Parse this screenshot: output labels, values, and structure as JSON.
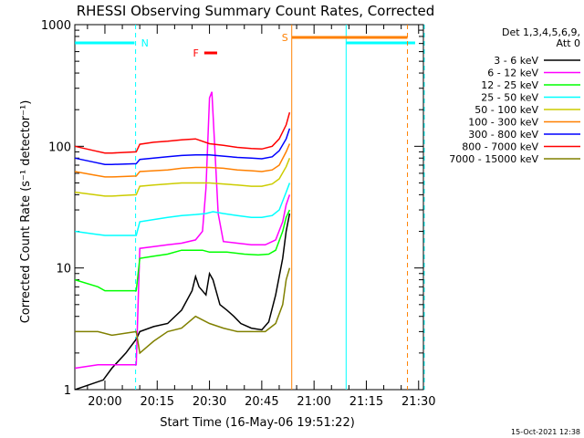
{
  "chart_data": {
    "type": "line",
    "title": "RHESSI Observing Summary Count Rates, Corrected",
    "xlabel": "Start Time (16-May-06 19:51:22)",
    "ylabel": "Corrected Count Rate (s⁻¹ detector⁻¹)",
    "footer": "15-Oct-2021 12:38",
    "y_scale": "log",
    "ylim": [
      1,
      1000
    ],
    "xlim_minutes": [
      -8.63,
      91.37
    ],
    "x_ticks": [
      {
        "label": "20:00",
        "minute": 0
      },
      {
        "label": "20:15",
        "minute": 15
      },
      {
        "label": "20:30",
        "minute": 30
      },
      {
        "label": "20:45",
        "minute": 45
      },
      {
        "label": "21:00",
        "minute": 60
      },
      {
        "label": "21:15",
        "minute": 75
      },
      {
        "label": "21:30",
        "minute": 90
      }
    ],
    "y_ticks": [
      {
        "label": "1",
        "value": 1
      },
      {
        "label": "10",
        "value": 10
      },
      {
        "label": "100",
        "value": 100
      },
      {
        "label": "1000",
        "value": 1000
      }
    ],
    "legend": {
      "header_line1": "Det 1,3,4,5,6,9,",
      "header_line2": "Att 0",
      "placement": "right"
    },
    "series": [
      {
        "name": "3 - 6 keV",
        "color": "#000000",
        "points": [
          [
            -8.6,
            1
          ],
          [
            -0.5,
            1.2
          ],
          [
            2,
            1.5
          ],
          [
            6,
            2
          ],
          [
            9,
            2.6
          ],
          [
            10,
            3
          ],
          [
            14,
            3.3
          ],
          [
            18,
            3.5
          ],
          [
            22,
            4.5
          ],
          [
            25,
            6.5
          ],
          [
            26,
            8.5
          ],
          [
            27,
            7
          ],
          [
            29,
            6
          ],
          [
            30,
            9
          ],
          [
            31,
            8
          ],
          [
            33,
            5
          ],
          [
            35,
            4.5
          ],
          [
            37,
            4
          ],
          [
            39,
            3.5
          ],
          [
            42,
            3.2
          ],
          [
            45,
            3.1
          ],
          [
            47,
            3.6
          ],
          [
            49,
            6
          ],
          [
            51,
            12
          ],
          [
            52,
            20
          ],
          [
            53,
            28
          ]
        ]
      },
      {
        "name": "6 - 12 keV",
        "color": "#ff00ff",
        "points": [
          [
            -8.6,
            1.5
          ],
          [
            -2,
            1.6
          ],
          [
            2,
            1.6
          ],
          [
            9,
            1.6
          ],
          [
            10,
            14.5
          ],
          [
            14,
            15
          ],
          [
            18,
            15.5
          ],
          [
            22,
            16
          ],
          [
            26,
            17
          ],
          [
            28,
            20
          ],
          [
            29,
            45
          ],
          [
            30,
            250
          ],
          [
            30.7,
            280
          ],
          [
            31.5,
            100
          ],
          [
            32.5,
            28
          ],
          [
            34,
            16.5
          ],
          [
            38,
            16
          ],
          [
            42,
            15.5
          ],
          [
            46,
            15.5
          ],
          [
            49,
            17
          ],
          [
            51,
            24
          ],
          [
            52,
            33
          ],
          [
            53,
            40
          ]
        ]
      },
      {
        "name": "12 - 25 keV",
        "color": "#00ff00",
        "points": [
          [
            -8.6,
            8
          ],
          [
            -2,
            7
          ],
          [
            0,
            6.5
          ],
          [
            2,
            6.5
          ],
          [
            9,
            6.5
          ],
          [
            10,
            12
          ],
          [
            14,
            12.5
          ],
          [
            18,
            13
          ],
          [
            22,
            14
          ],
          [
            26,
            14
          ],
          [
            28,
            14
          ],
          [
            30,
            13.5
          ],
          [
            32,
            13.5
          ],
          [
            35,
            13.5
          ],
          [
            40,
            13
          ],
          [
            44,
            12.8
          ],
          [
            47,
            13
          ],
          [
            49,
            14
          ],
          [
            51,
            20
          ],
          [
            52,
            26
          ],
          [
            53,
            30
          ]
        ]
      },
      {
        "name": "25 - 50 keV",
        "color": "#00ffff",
        "points": [
          [
            -8.6,
            20
          ],
          [
            -3,
            19
          ],
          [
            0,
            18.5
          ],
          [
            2,
            18.5
          ],
          [
            9,
            18.5
          ],
          [
            10,
            24
          ],
          [
            14,
            25
          ],
          [
            18,
            26
          ],
          [
            22,
            27
          ],
          [
            26,
            27.5
          ],
          [
            29,
            28
          ],
          [
            31,
            29
          ],
          [
            34,
            28
          ],
          [
            38,
            27
          ],
          [
            42,
            26
          ],
          [
            45,
            26
          ],
          [
            48,
            27
          ],
          [
            50,
            30
          ],
          [
            52,
            42
          ],
          [
            53,
            50
          ]
        ]
      },
      {
        "name": "50 - 100 keV",
        "color": "#cccc00",
        "points": [
          [
            -8.6,
            42
          ],
          [
            -3,
            40
          ],
          [
            0,
            39
          ],
          [
            2,
            39
          ],
          [
            9,
            40
          ],
          [
            10,
            47
          ],
          [
            14,
            48
          ],
          [
            18,
            49
          ],
          [
            22,
            50
          ],
          [
            26,
            50
          ],
          [
            30,
            50
          ],
          [
            34,
            49
          ],
          [
            38,
            48
          ],
          [
            42,
            47
          ],
          [
            45,
            47
          ],
          [
            48,
            49
          ],
          [
            50,
            54
          ],
          [
            52,
            68
          ],
          [
            53,
            80
          ]
        ]
      },
      {
        "name": "100 - 300 keV",
        "color": "#ff8000",
        "points": [
          [
            -8.6,
            62
          ],
          [
            -3,
            58
          ],
          [
            0,
            56
          ],
          [
            2,
            56
          ],
          [
            9,
            57
          ],
          [
            10,
            62
          ],
          [
            14,
            63
          ],
          [
            18,
            64
          ],
          [
            22,
            66
          ],
          [
            26,
            67
          ],
          [
            30,
            67
          ],
          [
            34,
            66
          ],
          [
            38,
            64
          ],
          [
            42,
            63
          ],
          [
            45,
            62
          ],
          [
            48,
            64
          ],
          [
            50,
            70
          ],
          [
            52,
            90
          ],
          [
            53,
            105
          ]
        ]
      },
      {
        "name": "300 - 800 keV",
        "color": "#0000ff",
        "points": [
          [
            -8.6,
            80
          ],
          [
            -3,
            74
          ],
          [
            0,
            71
          ],
          [
            2,
            71
          ],
          [
            9,
            72
          ],
          [
            10,
            78
          ],
          [
            14,
            80
          ],
          [
            18,
            82
          ],
          [
            22,
            84
          ],
          [
            26,
            85
          ],
          [
            30,
            85
          ],
          [
            34,
            83
          ],
          [
            38,
            81
          ],
          [
            42,
            80
          ],
          [
            45,
            79
          ],
          [
            48,
            82
          ],
          [
            50,
            92
          ],
          [
            52,
            115
          ],
          [
            53,
            140
          ]
        ]
      },
      {
        "name": "800 - 7000 keV",
        "color": "#ff0000",
        "points": [
          [
            -8.6,
            100
          ],
          [
            -3,
            92
          ],
          [
            0,
            88
          ],
          [
            2,
            88
          ],
          [
            9,
            90
          ],
          [
            10,
            104
          ],
          [
            14,
            108
          ],
          [
            18,
            110
          ],
          [
            22,
            113
          ],
          [
            26,
            115
          ],
          [
            30,
            105
          ],
          [
            34,
            102
          ],
          [
            38,
            98
          ],
          [
            42,
            96
          ],
          [
            45,
            95
          ],
          [
            48,
            100
          ],
          [
            50,
            115
          ],
          [
            52,
            150
          ],
          [
            53,
            190
          ]
        ]
      },
      {
        "name": "7000 - 15000 keV",
        "color": "#808000",
        "points": [
          [
            -8.6,
            3
          ],
          [
            -2,
            3
          ],
          [
            2,
            2.8
          ],
          [
            9,
            3
          ],
          [
            10,
            2
          ],
          [
            14,
            2.5
          ],
          [
            18,
            3
          ],
          [
            22,
            3.2
          ],
          [
            26,
            4
          ],
          [
            30,
            3.5
          ],
          [
            34,
            3.2
          ],
          [
            38,
            3
          ],
          [
            42,
            3
          ],
          [
            46,
            3
          ],
          [
            49,
            3.5
          ],
          [
            51,
            5
          ],
          [
            52,
            8
          ],
          [
            53,
            10
          ]
        ]
      }
    ],
    "markers": [
      {
        "label": "N",
        "color": "#00ffff",
        "type": "night",
        "bar_start_minute": -8.6,
        "bar_end_minute": 8.5,
        "line_minute": 8.8,
        "line_style": "dashed"
      },
      {
        "label": "N",
        "color": "#00ffff",
        "type": "night",
        "bar_start_minute": 69.2,
        "bar_end_minute": 89,
        "line_minute": 69.2,
        "line_style": "solid",
        "label_visible": false
      },
      {
        "label": "S",
        "color": "#ff8000",
        "type": "saa",
        "bar_start_minute": 53.6,
        "bar_end_minute": 86.8,
        "line_minute": 53.6,
        "line_style": "solid"
      },
      {
        "label": "F",
        "color": "#ff0000",
        "type": "flare",
        "bar_start_minute": 28.5,
        "bar_end_minute": 32.2
      }
    ]
  }
}
